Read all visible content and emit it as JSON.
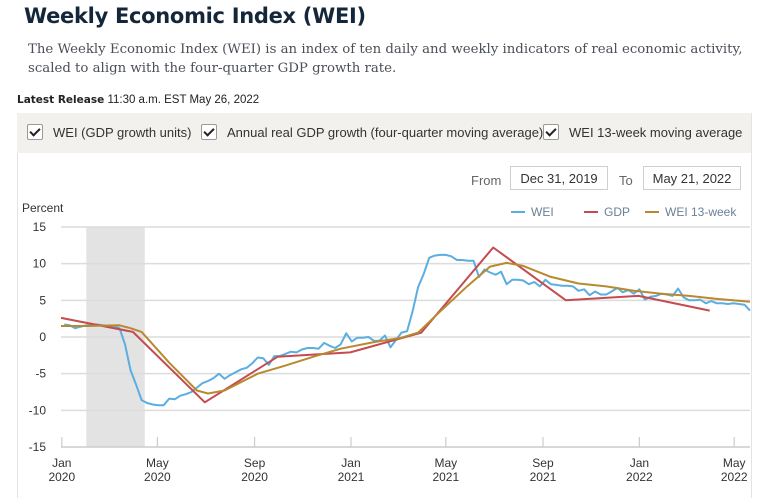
{
  "header": {
    "title": "Weekly Economic Index (WEI)",
    "description": "The Weekly Economic Index (WEI) is an index of ten daily and weekly indicators of real economic activity, scaled to align with the four-quarter GDP growth rate.",
    "release_label": "Latest Release",
    "release_value": "11:30 a.m. EST May 26, 2022"
  },
  "toggles": [
    {
      "label": "WEI (GDP growth units)",
      "checked": true
    },
    {
      "label": "Annual real GDP growth (four-quarter moving average)",
      "checked": true
    },
    {
      "label": "WEI 13-week moving average",
      "checked": true
    }
  ],
  "date_range": {
    "from_label": "From",
    "from_value": "Dec 31, 2019",
    "to_label": "To",
    "to_value": "May 21, 2022"
  },
  "chart_data": {
    "type": "line",
    "title": "",
    "ylabel": "Percent",
    "xlabel": "",
    "ylim": [
      -15,
      15
    ],
    "yticks": [
      15,
      10,
      5,
      0,
      -5,
      -10,
      -15
    ],
    "xlim": [
      "2019-12-31",
      "2022-05-21"
    ],
    "xticks": [
      {
        "date": "2020-01-01",
        "label": [
          "Jan",
          "2020"
        ]
      },
      {
        "date": "2020-05-01",
        "label": [
          "May",
          "2020"
        ]
      },
      {
        "date": "2020-09-01",
        "label": [
          "Sep",
          "2020"
        ]
      },
      {
        "date": "2021-01-01",
        "label": [
          "Jan",
          "2021"
        ]
      },
      {
        "date": "2021-05-01",
        "label": [
          "May",
          "2021"
        ]
      },
      {
        "date": "2021-09-01",
        "label": [
          "Sep",
          "2021"
        ]
      },
      {
        "date": "2022-01-01",
        "label": [
          "Jan",
          "2022"
        ]
      },
      {
        "date": "2022-05-01",
        "label": [
          "May",
          "2022"
        ]
      }
    ],
    "grid": true,
    "legend_position": "top-right",
    "shaded_regions": [
      {
        "label": "Recession",
        "start": "2020-02-01",
        "end": "2020-04-15",
        "color": "#e3e3e3"
      }
    ],
    "series": [
      {
        "name": "WEI",
        "color": "#5aaee0",
        "points": [
          [
            "2020-01-04",
            1.7
          ],
          [
            "2020-01-11",
            1.6
          ],
          [
            "2020-01-18",
            1.2
          ],
          [
            "2020-01-25",
            1.4
          ],
          [
            "2020-02-01",
            1.6
          ],
          [
            "2020-02-08",
            1.6
          ],
          [
            "2020-02-15",
            1.7
          ],
          [
            "2020-02-22",
            1.6
          ],
          [
            "2020-02-29",
            1.5
          ],
          [
            "2020-03-07",
            1.5
          ],
          [
            "2020-03-14",
            1.2
          ],
          [
            "2020-03-21",
            -1.0
          ],
          [
            "2020-03-28",
            -4.5
          ],
          [
            "2020-04-04",
            -6.5
          ],
          [
            "2020-04-11",
            -8.6
          ],
          [
            "2020-04-18",
            -9.0
          ],
          [
            "2020-04-25",
            -9.2
          ],
          [
            "2020-05-02",
            -9.3
          ],
          [
            "2020-05-09",
            -9.3
          ],
          [
            "2020-05-16",
            -8.4
          ],
          [
            "2020-05-23",
            -8.5
          ],
          [
            "2020-05-30",
            -8.0
          ],
          [
            "2020-06-06",
            -7.8
          ],
          [
            "2020-06-13",
            -7.5
          ],
          [
            "2020-06-20",
            -6.9
          ],
          [
            "2020-06-27",
            -6.3
          ],
          [
            "2020-07-04",
            -6.0
          ],
          [
            "2020-07-11",
            -5.6
          ],
          [
            "2020-07-18",
            -5.0
          ],
          [
            "2020-07-25",
            -5.7
          ],
          [
            "2020-08-01",
            -5.2
          ],
          [
            "2020-08-08",
            -4.8
          ],
          [
            "2020-08-15",
            -4.4
          ],
          [
            "2020-08-22",
            -4.2
          ],
          [
            "2020-08-29",
            -3.6
          ],
          [
            "2020-09-05",
            -2.8
          ],
          [
            "2020-09-12",
            -2.9
          ],
          [
            "2020-09-19",
            -3.8
          ],
          [
            "2020-09-26",
            -2.6
          ],
          [
            "2020-10-03",
            -2.6
          ],
          [
            "2020-10-10",
            -2.3
          ],
          [
            "2020-10-17",
            -2.0
          ],
          [
            "2020-10-24",
            -2.1
          ],
          [
            "2020-10-31",
            -1.7
          ],
          [
            "2020-11-07",
            -1.5
          ],
          [
            "2020-11-14",
            -1.5
          ],
          [
            "2020-11-21",
            -1.6
          ],
          [
            "2020-11-28",
            -0.8
          ],
          [
            "2020-12-05",
            -1.2
          ],
          [
            "2020-12-12",
            -1.5
          ],
          [
            "2020-12-19",
            -1.0
          ],
          [
            "2020-12-26",
            0.5
          ],
          [
            "2021-01-02",
            -0.6
          ],
          [
            "2021-01-09",
            -0.1
          ],
          [
            "2021-01-16",
            -0.1
          ],
          [
            "2021-01-23",
            0.0
          ],
          [
            "2021-01-30",
            -0.5
          ],
          [
            "2021-02-06",
            -0.5
          ],
          [
            "2021-02-13",
            0.2
          ],
          [
            "2021-02-20",
            -1.4
          ],
          [
            "2021-02-27",
            -0.4
          ],
          [
            "2021-03-06",
            0.6
          ],
          [
            "2021-03-13",
            0.8
          ],
          [
            "2021-03-20",
            3.5
          ],
          [
            "2021-03-27",
            6.8
          ],
          [
            "2021-04-03",
            8.6
          ],
          [
            "2021-04-10",
            10.8
          ],
          [
            "2021-04-17",
            11.1
          ],
          [
            "2021-04-24",
            11.2
          ],
          [
            "2021-05-01",
            11.2
          ],
          [
            "2021-05-08",
            11.0
          ],
          [
            "2021-05-15",
            10.5
          ],
          [
            "2021-05-22",
            10.5
          ],
          [
            "2021-05-29",
            10.4
          ],
          [
            "2021-06-05",
            10.4
          ],
          [
            "2021-06-12",
            8.2
          ],
          [
            "2021-06-19",
            9.2
          ],
          [
            "2021-06-26",
            8.8
          ],
          [
            "2021-07-03",
            8.5
          ],
          [
            "2021-07-10",
            8.9
          ],
          [
            "2021-07-17",
            7.2
          ],
          [
            "2021-07-24",
            7.8
          ],
          [
            "2021-07-31",
            7.8
          ],
          [
            "2021-08-07",
            7.7
          ],
          [
            "2021-08-14",
            7.2
          ],
          [
            "2021-08-21",
            7.5
          ],
          [
            "2021-08-28",
            6.9
          ],
          [
            "2021-09-04",
            7.8
          ],
          [
            "2021-09-11",
            7.2
          ],
          [
            "2021-09-18",
            7.1
          ],
          [
            "2021-09-25",
            7.0
          ],
          [
            "2021-10-02",
            7.0
          ],
          [
            "2021-10-09",
            6.9
          ],
          [
            "2021-10-16",
            6.3
          ],
          [
            "2021-10-23",
            6.5
          ],
          [
            "2021-10-30",
            5.7
          ],
          [
            "2021-11-06",
            6.2
          ],
          [
            "2021-11-13",
            5.8
          ],
          [
            "2021-11-20",
            5.8
          ],
          [
            "2021-11-27",
            6.2
          ],
          [
            "2021-12-04",
            6.7
          ],
          [
            "2021-12-11",
            6.1
          ],
          [
            "2021-12-18",
            6.4
          ],
          [
            "2021-12-25",
            5.9
          ],
          [
            "2022-01-01",
            6.5
          ],
          [
            "2022-01-08",
            5.1
          ],
          [
            "2022-01-15",
            5.5
          ],
          [
            "2022-01-22",
            5.6
          ],
          [
            "2022-01-29",
            5.9
          ],
          [
            "2022-02-05",
            5.8
          ],
          [
            "2022-02-12",
            5.6
          ],
          [
            "2022-02-19",
            6.6
          ],
          [
            "2022-02-26",
            5.4
          ],
          [
            "2022-03-05",
            5.0
          ],
          [
            "2022-03-12",
            5.0
          ],
          [
            "2022-03-19",
            5.1
          ],
          [
            "2022-03-26",
            4.6
          ],
          [
            "2022-04-02",
            4.9
          ],
          [
            "2022-04-09",
            4.6
          ],
          [
            "2022-04-16",
            4.6
          ],
          [
            "2022-04-23",
            4.5
          ],
          [
            "2022-04-30",
            4.6
          ],
          [
            "2022-05-07",
            4.5
          ],
          [
            "2022-05-14",
            4.4
          ],
          [
            "2022-05-21",
            3.6
          ]
        ]
      },
      {
        "name": "GDP",
        "color": "#c44b4f",
        "points": [
          [
            "2019-12-31",
            2.6
          ],
          [
            "2020-03-31",
            0.7
          ],
          [
            "2020-06-30",
            -8.9
          ],
          [
            "2020-09-30",
            -2.7
          ],
          [
            "2020-12-31",
            -2.1
          ],
          [
            "2021-03-31",
            0.6
          ],
          [
            "2021-06-30",
            12.2
          ],
          [
            "2021-09-30",
            5.0
          ],
          [
            "2021-12-31",
            5.6
          ],
          [
            "2022-03-31",
            3.6
          ]
        ]
      },
      {
        "name": "WEI 13-week",
        "color": "#b8892f",
        "points": [
          [
            "2019-12-31",
            1.5
          ],
          [
            "2020-02-01",
            1.5
          ],
          [
            "2020-03-14",
            1.6
          ],
          [
            "2020-03-28",
            1.2
          ],
          [
            "2020-04-11",
            0.7
          ],
          [
            "2020-05-16",
            -3.5
          ],
          [
            "2020-06-20",
            -7.3
          ],
          [
            "2020-07-04",
            -7.7
          ],
          [
            "2020-07-25",
            -7.3
          ],
          [
            "2020-09-05",
            -5.0
          ],
          [
            "2020-10-10",
            -3.9
          ],
          [
            "2020-11-14",
            -2.7
          ],
          [
            "2020-12-19",
            -1.6
          ],
          [
            "2021-01-30",
            -0.7
          ],
          [
            "2021-03-06",
            -0.1
          ],
          [
            "2021-03-27",
            0.6
          ],
          [
            "2021-04-24",
            3.5
          ],
          [
            "2021-05-29",
            7.0
          ],
          [
            "2021-06-26",
            9.6
          ],
          [
            "2021-07-17",
            10.1
          ],
          [
            "2021-08-07",
            9.7
          ],
          [
            "2021-09-11",
            8.2
          ],
          [
            "2021-10-16",
            7.3
          ],
          [
            "2021-11-20",
            6.9
          ],
          [
            "2021-12-25",
            6.3
          ],
          [
            "2022-01-29",
            5.9
          ],
          [
            "2022-03-05",
            5.6
          ],
          [
            "2022-04-09",
            5.2
          ],
          [
            "2022-05-21",
            4.8
          ]
        ]
      }
    ]
  }
}
